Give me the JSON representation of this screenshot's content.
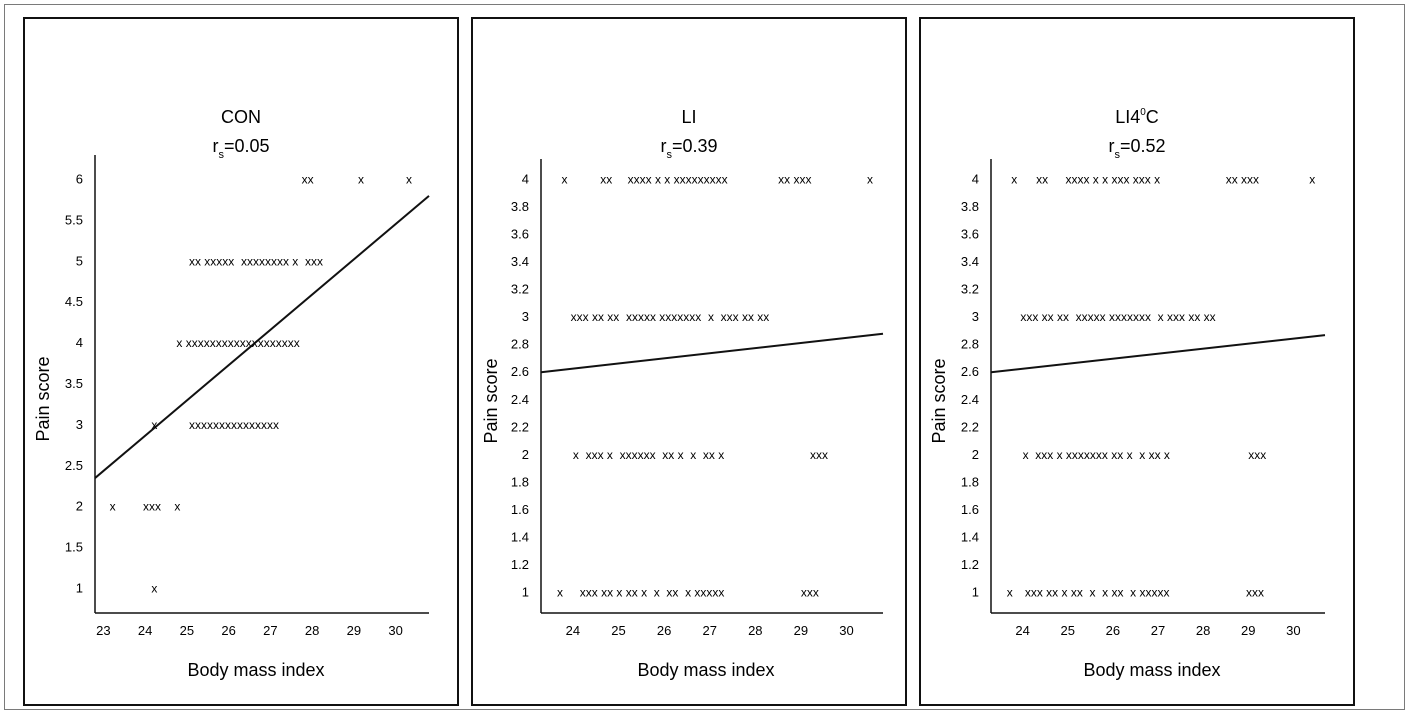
{
  "chart_data": [
    {
      "type": "scatter",
      "title": "CON",
      "stat_symbol": "r",
      "stat_sub": "s",
      "stat_value": "=0.05",
      "xlabel": "Body mass index",
      "ylabel": "Pain score",
      "xlim": [
        22.8,
        30.8
      ],
      "ylim": [
        0.7,
        6.3
      ],
      "xticks": [
        "23",
        "24",
        "25",
        "26",
        "27",
        "28",
        "29",
        "30"
      ],
      "yticks": [
        "1",
        "1.5",
        "2",
        "2.5",
        "3",
        "3.5",
        "4",
        "4.5",
        "5",
        "5.5",
        "6"
      ],
      "points": [
        {
          "x": 23.15,
          "y": 6,
          "text": ""
        },
        {
          "x": 27.75,
          "y": 6,
          "text": "xx"
        },
        {
          "x": 29.1,
          "y": 6,
          "text": "x"
        },
        {
          "x": 30.25,
          "y": 6,
          "text": "x"
        },
        {
          "x": 25.05,
          "y": 5,
          "text": "xx xxxxx  xxxxxxxx x  xxx"
        },
        {
          "x": 24.75,
          "y": 4,
          "text": "x xxxxxxxxxxxxxxxxxxx"
        },
        {
          "x": 24.15,
          "y": 3,
          "text": "x"
        },
        {
          "x": 25.05,
          "y": 3,
          "text": "xxxxxxxxxxxxxxx"
        },
        {
          "x": 23.15,
          "y": 2,
          "text": "x"
        },
        {
          "x": 23.95,
          "y": 2,
          "text": "xxx"
        },
        {
          "x": 24.7,
          "y": 2,
          "text": "x"
        },
        {
          "x": 24.15,
          "y": 1,
          "text": "x"
        }
      ],
      "trendline": {
        "x": [
          22.8,
          30.8
        ],
        "y": [
          2.35,
          5.8
        ]
      }
    },
    {
      "type": "scatter",
      "title": "LI",
      "stat_symbol": "r",
      "stat_sub": "s",
      "stat_value": "=0.39",
      "xlabel": "Body mass index",
      "ylabel": "Pain score",
      "xlim": [
        23.3,
        30.8
      ],
      "ylim": [
        0.85,
        4.15
      ],
      "xticks": [
        "24",
        "25",
        "26",
        "27",
        "28",
        "29",
        "30"
      ],
      "yticks": [
        "1",
        "1.2",
        "1.4",
        "1.6",
        "1.8",
        "2",
        "2.2",
        "2.4",
        "2.6",
        "2.8",
        "3",
        "3.2",
        "3.4",
        "3.6",
        "3.8",
        "4"
      ],
      "points": [
        {
          "x": 23.75,
          "y": 4,
          "text": "x"
        },
        {
          "x": 24.6,
          "y": 4,
          "text": "xx"
        },
        {
          "x": 25.2,
          "y": 4,
          "text": "xxxx x x xxxxxxxxx"
        },
        {
          "x": 28.5,
          "y": 4,
          "text": "xx xxx"
        },
        {
          "x": 30.45,
          "y": 4,
          "text": "x"
        },
        {
          "x": 23.95,
          "y": 3,
          "text": "xxx xx xx  xxxxx xxxxxxx  x  xxx xx xx"
        },
        {
          "x": 24.0,
          "y": 2,
          "text": "x  xxx x  xxxxxx  xx x  x  xx x"
        },
        {
          "x": 29.2,
          "y": 2,
          "text": "xxx"
        },
        {
          "x": 23.65,
          "y": 1,
          "text": "x"
        },
        {
          "x": 24.15,
          "y": 1,
          "text": "xxx xx x xx x  x  xx  x xxxxx"
        },
        {
          "x": 29.0,
          "y": 1,
          "text": "xxx"
        }
      ],
      "trendline": {
        "x": [
          23.3,
          30.8
        ],
        "y": [
          2.6,
          2.88
        ]
      }
    },
    {
      "type": "scatter",
      "title": "LI4",
      "title_sup": "0",
      "title_suffix": "C",
      "stat_symbol": "r",
      "stat_sub": "s",
      "stat_value": "=0.52",
      "xlabel": "Body mass index",
      "ylabel": "Pain score",
      "xlim": [
        23.3,
        30.7
      ],
      "ylim": [
        0.85,
        4.15
      ],
      "xticks": [
        "24",
        "25",
        "26",
        "27",
        "28",
        "29",
        "30"
      ],
      "yticks": [
        "1",
        "1.2",
        "1.4",
        "1.6",
        "1.8",
        "2",
        "2.2",
        "2.4",
        "2.6",
        "2.8",
        "3",
        "3.2",
        "3.4",
        "3.6",
        "3.8",
        "4"
      ],
      "points": [
        {
          "x": 23.75,
          "y": 4,
          "text": "x"
        },
        {
          "x": 24.3,
          "y": 4,
          "text": "xx"
        },
        {
          "x": 24.95,
          "y": 4,
          "text": "xxxx x x xxx xxx x"
        },
        {
          "x": 28.5,
          "y": 4,
          "text": "xx xxx"
        },
        {
          "x": 30.35,
          "y": 4,
          "text": "x"
        },
        {
          "x": 23.95,
          "y": 3,
          "text": "xxx xx xx  xxxxx xxxxxxx  x xxx xx xx"
        },
        {
          "x": 24.0,
          "y": 2,
          "text": "x  xxx x xxxxxxx xx x  x xx x"
        },
        {
          "x": 29.0,
          "y": 2,
          "text": "xxx"
        },
        {
          "x": 23.65,
          "y": 1,
          "text": "x"
        },
        {
          "x": 24.05,
          "y": 1,
          "text": "xxx xx x xx  x  x xx  x xxxxx"
        },
        {
          "x": 28.95,
          "y": 1,
          "text": "xxx"
        }
      ],
      "trendline": {
        "x": [
          23.3,
          30.7
        ],
        "y": [
          2.6,
          2.87
        ]
      }
    }
  ]
}
